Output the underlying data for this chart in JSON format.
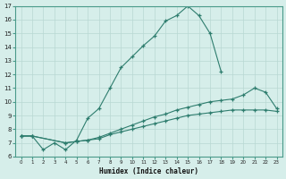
{
  "xlabel": "Humidex (Indice chaleur)",
  "bg_color": "#d6eeea",
  "grid_color": "#b8d8d2",
  "line_color": "#2e7d6e",
  "line1_x": [
    0,
    1,
    2,
    3,
    4,
    5,
    6,
    7,
    8,
    9,
    10,
    11,
    12,
    13,
    14,
    15,
    16,
    17,
    18
  ],
  "line1_y": [
    7.5,
    7.5,
    6.5,
    7.0,
    6.5,
    7.2,
    8.8,
    9.5,
    11.0,
    12.5,
    13.3,
    14.1,
    14.8,
    15.9,
    16.3,
    17.0,
    16.3,
    15.0,
    12.2
  ],
  "line2_x": [
    0,
    1,
    4,
    5,
    6,
    7,
    8,
    9,
    10,
    11,
    12,
    13,
    14,
    15,
    16,
    17,
    18,
    19,
    20,
    21,
    22,
    23
  ],
  "line2_y": [
    7.5,
    7.5,
    7.0,
    7.1,
    7.2,
    7.4,
    7.7,
    8.0,
    8.3,
    8.6,
    8.9,
    9.1,
    9.4,
    9.6,
    9.8,
    10.0,
    10.1,
    10.2,
    10.5,
    11.0,
    10.7,
    9.5
  ],
  "line3_x": [
    0,
    1,
    4,
    5,
    6,
    7,
    8,
    9,
    10,
    11,
    12,
    13,
    14,
    15,
    16,
    17,
    18,
    19,
    20,
    21,
    22,
    23
  ],
  "line3_y": [
    7.5,
    7.5,
    7.0,
    7.1,
    7.2,
    7.3,
    7.6,
    7.8,
    8.0,
    8.2,
    8.4,
    8.6,
    8.8,
    9.0,
    9.1,
    9.2,
    9.3,
    9.4,
    9.4,
    9.4,
    9.4,
    9.3
  ],
  "ylim": [
    6,
    17
  ],
  "xlim": [
    -0.5,
    23.5
  ],
  "yticks": [
    6,
    7,
    8,
    9,
    10,
    11,
    12,
    13,
    14,
    15,
    16,
    17
  ],
  "xticks": [
    0,
    1,
    2,
    3,
    4,
    5,
    6,
    7,
    8,
    9,
    10,
    11,
    12,
    13,
    14,
    15,
    16,
    17,
    18,
    19,
    20,
    21,
    22,
    23
  ]
}
